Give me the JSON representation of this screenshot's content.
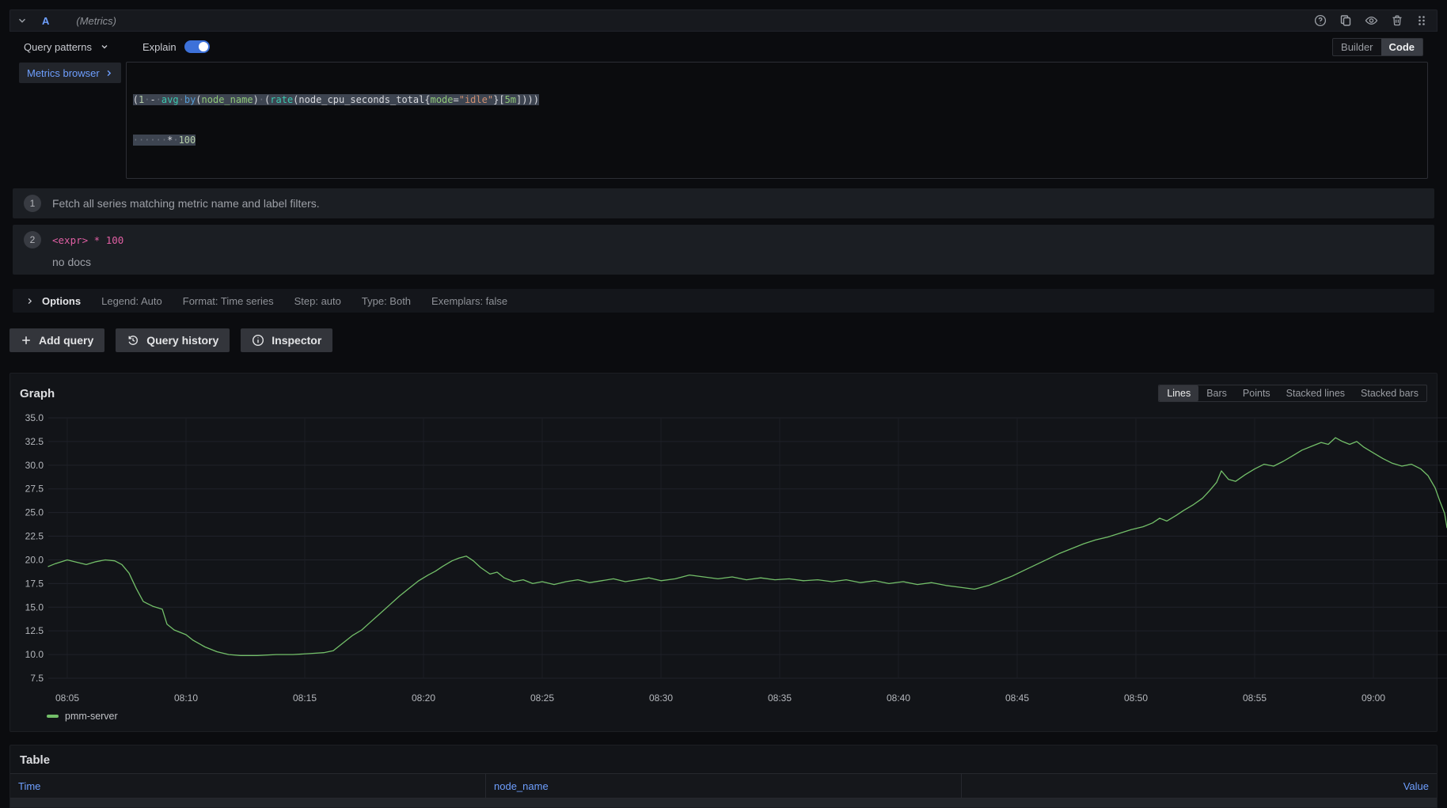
{
  "header": {
    "ref_id": "A",
    "datasource_hint": "(Metrics)"
  },
  "toolbar": {
    "query_patterns_label": "Query patterns",
    "explain_label": "Explain",
    "explain_on": true,
    "builder_label": "Builder",
    "code_label": "Code",
    "active_editor": "Code"
  },
  "editor": {
    "metrics_browser_label": "Metrics browser",
    "query_text": "(1 - avg by(node_name) (rate(node_cpu_seconds_total{mode=\"idle\"}[5m]))) * 100",
    "line1_tokens": [
      [
        "(",
        "p"
      ],
      [
        "1",
        "n"
      ],
      [
        "·",
        "w"
      ],
      [
        "-",
        "p"
      ],
      [
        "·",
        "w"
      ],
      [
        "avg",
        "f"
      ],
      [
        "·",
        "w"
      ],
      [
        "by",
        "k"
      ],
      [
        "(",
        "p"
      ],
      [
        "node_name",
        "l"
      ],
      [
        ")",
        "p"
      ],
      [
        "·",
        "w"
      ],
      [
        "(",
        "p"
      ],
      [
        "rate",
        "f"
      ],
      [
        "(",
        "p"
      ],
      [
        "node_cpu_seconds_total",
        "p"
      ],
      [
        "{",
        "p"
      ],
      [
        "mode",
        "l"
      ],
      [
        "=",
        "p"
      ],
      [
        "\"idle\"",
        "s"
      ],
      [
        "}",
        "p"
      ],
      [
        "[",
        "p"
      ],
      [
        "5m",
        "l"
      ],
      [
        "]",
        "p"
      ],
      [
        ")))",
        "p"
      ]
    ],
    "line2_tokens": [
      [
        "······",
        "w"
      ],
      [
        "*",
        "p"
      ],
      [
        "·",
        "w"
      ],
      [
        "100",
        "n"
      ]
    ]
  },
  "explain_steps": [
    {
      "num": "1",
      "text": "Fetch all series matching metric name and label filters."
    },
    {
      "num": "2",
      "code": "<expr> * 100",
      "note": "no docs"
    }
  ],
  "options_row": {
    "label": "Options",
    "summary": [
      "Legend: Auto",
      "Format: Time series",
      "Step: auto",
      "Type: Both",
      "Exemplars: false"
    ]
  },
  "actions": {
    "add_query": "Add query",
    "query_history": "Query history",
    "inspector": "Inspector"
  },
  "graph_panel": {
    "title": "Graph",
    "modes": [
      "Lines",
      "Bars",
      "Points",
      "Stacked lines",
      "Stacked bars"
    ],
    "active_mode": "Lines",
    "legend_label": "pmm-server",
    "line_color": "#73bf69"
  },
  "chart_data": {
    "type": "line",
    "title": "Graph",
    "xlabel": "",
    "ylabel": "",
    "x_tick_labels": [
      "08:05",
      "08:10",
      "08:15",
      "08:20",
      "08:25",
      "08:30",
      "08:35",
      "08:40",
      "08:45",
      "08:50",
      "08:55",
      "09:00"
    ],
    "x_tick_minutes": [
      5,
      10,
      15,
      20,
      25,
      30,
      35,
      40,
      45,
      50,
      55,
      60
    ],
    "y_ticks": [
      35.0,
      32.5,
      30.0,
      27.5,
      25.0,
      22.5,
      20.0,
      17.5,
      15.0,
      12.5,
      10.0,
      7.5
    ],
    "y_range": [
      7.5,
      35.0
    ],
    "x_range_minutes": [
      4.2,
      63.1
    ],
    "grid": true,
    "legend_position": "bottom-left",
    "series": [
      {
        "name": "pmm-server",
        "color": "#73bf69",
        "points": [
          [
            4.2,
            19.3
          ],
          [
            4.5,
            19.6
          ],
          [
            5.0,
            20.0
          ],
          [
            5.3,
            19.8
          ],
          [
            5.8,
            19.5
          ],
          [
            6.2,
            19.8
          ],
          [
            6.6,
            20.0
          ],
          [
            7.0,
            19.9
          ],
          [
            7.3,
            19.5
          ],
          [
            7.6,
            18.6
          ],
          [
            7.9,
            17.0
          ],
          [
            8.2,
            15.6
          ],
          [
            8.6,
            15.1
          ],
          [
            9.0,
            14.8
          ],
          [
            9.2,
            13.2
          ],
          [
            9.5,
            12.6
          ],
          [
            10.0,
            12.1
          ],
          [
            10.3,
            11.5
          ],
          [
            10.8,
            10.8
          ],
          [
            11.3,
            10.3
          ],
          [
            11.8,
            10.0
          ],
          [
            12.3,
            9.9
          ],
          [
            13.0,
            9.9
          ],
          [
            13.8,
            10.0
          ],
          [
            14.5,
            10.0
          ],
          [
            15.2,
            10.1
          ],
          [
            15.8,
            10.2
          ],
          [
            16.2,
            10.4
          ],
          [
            16.6,
            11.2
          ],
          [
            17.0,
            12.0
          ],
          [
            17.4,
            12.6
          ],
          [
            17.8,
            13.5
          ],
          [
            18.2,
            14.4
          ],
          [
            18.6,
            15.3
          ],
          [
            19.0,
            16.2
          ],
          [
            19.4,
            17.0
          ],
          [
            19.8,
            17.8
          ],
          [
            20.2,
            18.4
          ],
          [
            20.5,
            18.8
          ],
          [
            20.8,
            19.3
          ],
          [
            21.2,
            19.9
          ],
          [
            21.5,
            20.2
          ],
          [
            21.8,
            20.4
          ],
          [
            22.1,
            19.9
          ],
          [
            22.4,
            19.2
          ],
          [
            22.8,
            18.5
          ],
          [
            23.1,
            18.7
          ],
          [
            23.4,
            18.1
          ],
          [
            23.8,
            17.7
          ],
          [
            24.2,
            17.9
          ],
          [
            24.6,
            17.5
          ],
          [
            25.0,
            17.7
          ],
          [
            25.5,
            17.4
          ],
          [
            26.0,
            17.7
          ],
          [
            26.5,
            17.9
          ],
          [
            27.0,
            17.6
          ],
          [
            27.5,
            17.8
          ],
          [
            28.0,
            18.0
          ],
          [
            28.5,
            17.7
          ],
          [
            29.0,
            17.9
          ],
          [
            29.5,
            18.1
          ],
          [
            30.0,
            17.8
          ],
          [
            30.6,
            18.0
          ],
          [
            31.2,
            18.4
          ],
          [
            31.8,
            18.2
          ],
          [
            32.4,
            18.0
          ],
          [
            33.0,
            18.2
          ],
          [
            33.6,
            17.9
          ],
          [
            34.2,
            18.1
          ],
          [
            34.8,
            17.9
          ],
          [
            35.4,
            18.0
          ],
          [
            36.0,
            17.8
          ],
          [
            36.6,
            17.9
          ],
          [
            37.2,
            17.7
          ],
          [
            37.8,
            17.9
          ],
          [
            38.4,
            17.6
          ],
          [
            39.0,
            17.8
          ],
          [
            39.6,
            17.5
          ],
          [
            40.2,
            17.7
          ],
          [
            40.8,
            17.4
          ],
          [
            41.4,
            17.6
          ],
          [
            42.0,
            17.3
          ],
          [
            42.6,
            17.1
          ],
          [
            43.2,
            16.9
          ],
          [
            43.8,
            17.3
          ],
          [
            44.3,
            17.8
          ],
          [
            44.8,
            18.3
          ],
          [
            45.3,
            18.9
          ],
          [
            45.8,
            19.5
          ],
          [
            46.3,
            20.1
          ],
          [
            46.8,
            20.7
          ],
          [
            47.3,
            21.2
          ],
          [
            47.8,
            21.7
          ],
          [
            48.3,
            22.1
          ],
          [
            48.8,
            22.4
          ],
          [
            49.3,
            22.8
          ],
          [
            49.8,
            23.2
          ],
          [
            50.3,
            23.5
          ],
          [
            50.7,
            23.9
          ],
          [
            51.0,
            24.4
          ],
          [
            51.3,
            24.1
          ],
          [
            51.7,
            24.7
          ],
          [
            52.0,
            25.2
          ],
          [
            52.4,
            25.8
          ],
          [
            52.8,
            26.5
          ],
          [
            53.1,
            27.3
          ],
          [
            53.4,
            28.2
          ],
          [
            53.6,
            29.4
          ],
          [
            53.9,
            28.5
          ],
          [
            54.2,
            28.3
          ],
          [
            54.6,
            29.0
          ],
          [
            55.0,
            29.6
          ],
          [
            55.4,
            30.1
          ],
          [
            55.8,
            29.9
          ],
          [
            56.2,
            30.4
          ],
          [
            56.6,
            31.0
          ],
          [
            57.0,
            31.6
          ],
          [
            57.4,
            32.0
          ],
          [
            57.8,
            32.4
          ],
          [
            58.1,
            32.2
          ],
          [
            58.4,
            32.9
          ],
          [
            58.7,
            32.5
          ],
          [
            59.0,
            32.2
          ],
          [
            59.3,
            32.5
          ],
          [
            59.6,
            31.9
          ],
          [
            60.0,
            31.3
          ],
          [
            60.4,
            30.7
          ],
          [
            60.8,
            30.2
          ],
          [
            61.2,
            29.9
          ],
          [
            61.6,
            30.1
          ],
          [
            62.0,
            29.6
          ],
          [
            62.3,
            28.9
          ],
          [
            62.6,
            27.6
          ],
          [
            62.8,
            26.2
          ],
          [
            63.0,
            24.9
          ],
          [
            63.1,
            23.4
          ]
        ]
      }
    ]
  },
  "table_panel": {
    "title": "Table",
    "columns": [
      "Time",
      "node_name",
      "Value"
    ]
  },
  "colors": {
    "accent_blue": "#6e9fff",
    "toggle_blue": "#3d71d9",
    "series_green": "#73bf69",
    "code_pink": "#df5fa3"
  }
}
